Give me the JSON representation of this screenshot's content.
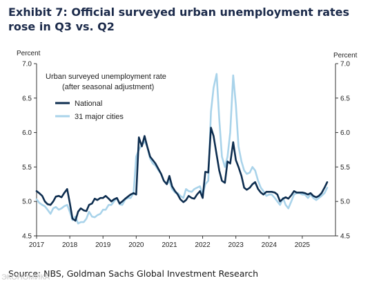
{
  "header": {
    "title_line1": "Exhibit 7: Official surveyed urban unemployment rates",
    "title_line2": "rose in Q3 vs. Q2"
  },
  "source": "Source: NBS, Goldman Sachs Global Investment Research",
  "watermark": "ЭКОНОМИКА",
  "colors": {
    "national": "#0d2d4f",
    "cities": "#a9d3ea",
    "axis": "#333333"
  },
  "chart_data": {
    "type": "line",
    "ylabel_left": "Percent",
    "ylabel_right": "Percent",
    "ylim": [
      4.5,
      7.0
    ],
    "y_ticks": [
      4.5,
      5.0,
      5.5,
      6.0,
      6.5,
      7.0
    ],
    "xlim": [
      2017.0,
      2025.9
    ],
    "x_ticks": [
      2017,
      2018,
      2019,
      2020,
      2021,
      2022,
      2023,
      2024,
      2025
    ],
    "legend_title": "Urban surveyed unemployment rate",
    "legend_subtitle": "(after seasonal adjustment)",
    "grid": false,
    "legend_position": "top-left",
    "series": [
      {
        "name": "National",
        "color": "#0d2d4f",
        "x": [
          2017.0,
          2017.08,
          2017.17,
          2017.25,
          2017.33,
          2017.42,
          2017.5,
          2017.58,
          2017.67,
          2017.75,
          2017.83,
          2017.92,
          2018.0,
          2018.08,
          2018.17,
          2018.25,
          2018.33,
          2018.42,
          2018.5,
          2018.58,
          2018.67,
          2018.75,
          2018.83,
          2018.92,
          2019.0,
          2019.08,
          2019.17,
          2019.25,
          2019.33,
          2019.42,
          2019.5,
          2019.58,
          2019.67,
          2019.75,
          2019.83,
          2019.92,
          2020.0,
          2020.08,
          2020.17,
          2020.25,
          2020.33,
          2020.42,
          2020.5,
          2020.58,
          2020.67,
          2020.75,
          2020.83,
          2020.92,
          2021.0,
          2021.08,
          2021.17,
          2021.25,
          2021.33,
          2021.42,
          2021.5,
          2021.58,
          2021.67,
          2021.75,
          2021.83,
          2021.92,
          2022.0,
          2022.08,
          2022.17,
          2022.25,
          2022.33,
          2022.42,
          2022.5,
          2022.58,
          2022.67,
          2022.75,
          2022.83,
          2022.92,
          2023.0,
          2023.08,
          2023.17,
          2023.25,
          2023.33,
          2023.42,
          2023.5,
          2023.58,
          2023.67,
          2023.75,
          2023.83,
          2023.92,
          2024.0,
          2024.08,
          2024.17,
          2024.25,
          2024.33,
          2024.42,
          2024.5,
          2024.58,
          2024.67,
          2024.75,
          2024.83,
          2024.92,
          2025.0,
          2025.08,
          2025.17,
          2025.25,
          2025.33,
          2025.42,
          2025.5,
          2025.58,
          2025.67,
          2025.75
        ],
        "values": [
          5.15,
          5.12,
          5.08,
          5.0,
          4.96,
          4.95,
          5.0,
          5.07,
          5.08,
          5.06,
          5.12,
          5.18,
          4.98,
          4.75,
          4.72,
          4.85,
          4.9,
          4.87,
          4.86,
          4.95,
          4.97,
          5.04,
          5.02,
          5.05,
          5.05,
          5.08,
          5.04,
          5.0,
          5.03,
          5.05,
          4.97,
          5.0,
          5.04,
          5.07,
          5.1,
          5.12,
          5.1,
          5.93,
          5.8,
          5.95,
          5.8,
          5.65,
          5.6,
          5.55,
          5.47,
          5.4,
          5.3,
          5.25,
          5.37,
          5.22,
          5.15,
          5.1,
          5.03,
          4.99,
          5.02,
          5.08,
          5.05,
          5.04,
          5.1,
          5.15,
          5.05,
          5.43,
          5.42,
          6.07,
          5.95,
          5.68,
          5.45,
          5.3,
          5.27,
          5.58,
          5.55,
          5.86,
          5.6,
          5.5,
          5.37,
          5.2,
          5.17,
          5.2,
          5.25,
          5.28,
          5.18,
          5.13,
          5.1,
          5.14,
          5.14,
          5.14,
          5.13,
          5.1,
          5.0,
          5.04,
          5.06,
          5.04,
          5.09,
          5.15,
          5.13,
          5.13,
          5.13,
          5.12,
          5.1,
          5.12,
          5.08,
          5.06,
          5.08,
          5.12,
          5.2,
          5.28
        ]
      },
      {
        "name": "31 major cities",
        "color": "#a9d3ea",
        "x": [
          2017.0,
          2017.08,
          2017.17,
          2017.25,
          2017.33,
          2017.42,
          2017.5,
          2017.58,
          2017.67,
          2017.75,
          2017.83,
          2017.92,
          2018.0,
          2018.08,
          2018.17,
          2018.25,
          2018.33,
          2018.42,
          2018.5,
          2018.58,
          2018.67,
          2018.75,
          2018.83,
          2018.92,
          2019.0,
          2019.08,
          2019.17,
          2019.25,
          2019.33,
          2019.42,
          2019.5,
          2019.58,
          2019.67,
          2019.75,
          2019.83,
          2019.92,
          2020.0,
          2020.08,
          2020.17,
          2020.25,
          2020.33,
          2020.42,
          2020.5,
          2020.58,
          2020.67,
          2020.75,
          2020.83,
          2020.92,
          2021.0,
          2021.08,
          2021.17,
          2021.25,
          2021.33,
          2021.42,
          2021.5,
          2021.58,
          2021.67,
          2021.75,
          2021.83,
          2021.92,
          2022.0,
          2022.08,
          2022.17,
          2022.25,
          2022.33,
          2022.42,
          2022.5,
          2022.58,
          2022.67,
          2022.75,
          2022.83,
          2022.92,
          2023.0,
          2023.08,
          2023.17,
          2023.25,
          2023.33,
          2023.42,
          2023.5,
          2023.58,
          2023.67,
          2023.75,
          2023.83,
          2023.92,
          2024.0,
          2024.08,
          2024.17,
          2024.25,
          2024.33,
          2024.42,
          2024.5,
          2024.58,
          2024.67,
          2024.75,
          2024.83,
          2024.92,
          2025.0,
          2025.08,
          2025.17,
          2025.25,
          2025.33,
          2025.42,
          2025.5,
          2025.58,
          2025.67,
          2025.75
        ],
        "values": [
          5.03,
          4.98,
          4.95,
          4.93,
          4.88,
          4.82,
          4.9,
          4.92,
          4.88,
          4.9,
          4.93,
          4.95,
          4.85,
          4.73,
          4.78,
          4.68,
          4.7,
          4.7,
          4.75,
          4.85,
          4.78,
          4.77,
          4.8,
          4.82,
          4.88,
          4.88,
          4.95,
          4.95,
          5.0,
          5.05,
          4.96,
          4.95,
          5.03,
          5.05,
          5.05,
          5.12,
          5.65,
          5.75,
          5.82,
          5.87,
          5.8,
          5.62,
          5.55,
          5.52,
          5.45,
          5.4,
          5.3,
          5.25,
          5.3,
          5.18,
          5.13,
          5.12,
          5.08,
          5.05,
          5.18,
          5.15,
          5.14,
          5.18,
          5.2,
          5.22,
          5.1,
          5.25,
          5.3,
          6.3,
          6.65,
          6.85,
          6.2,
          5.65,
          5.5,
          5.65,
          6.0,
          6.83,
          6.4,
          5.8,
          5.58,
          5.45,
          5.4,
          5.42,
          5.5,
          5.45,
          5.3,
          5.2,
          5.15,
          5.08,
          5.1,
          5.1,
          5.05,
          5.0,
          4.95,
          5.05,
          4.95,
          4.9,
          5.0,
          5.1,
          5.12,
          5.12,
          5.1,
          5.1,
          5.05,
          5.1,
          5.05,
          5.02,
          5.05,
          5.08,
          5.12,
          5.2
        ]
      }
    ]
  }
}
